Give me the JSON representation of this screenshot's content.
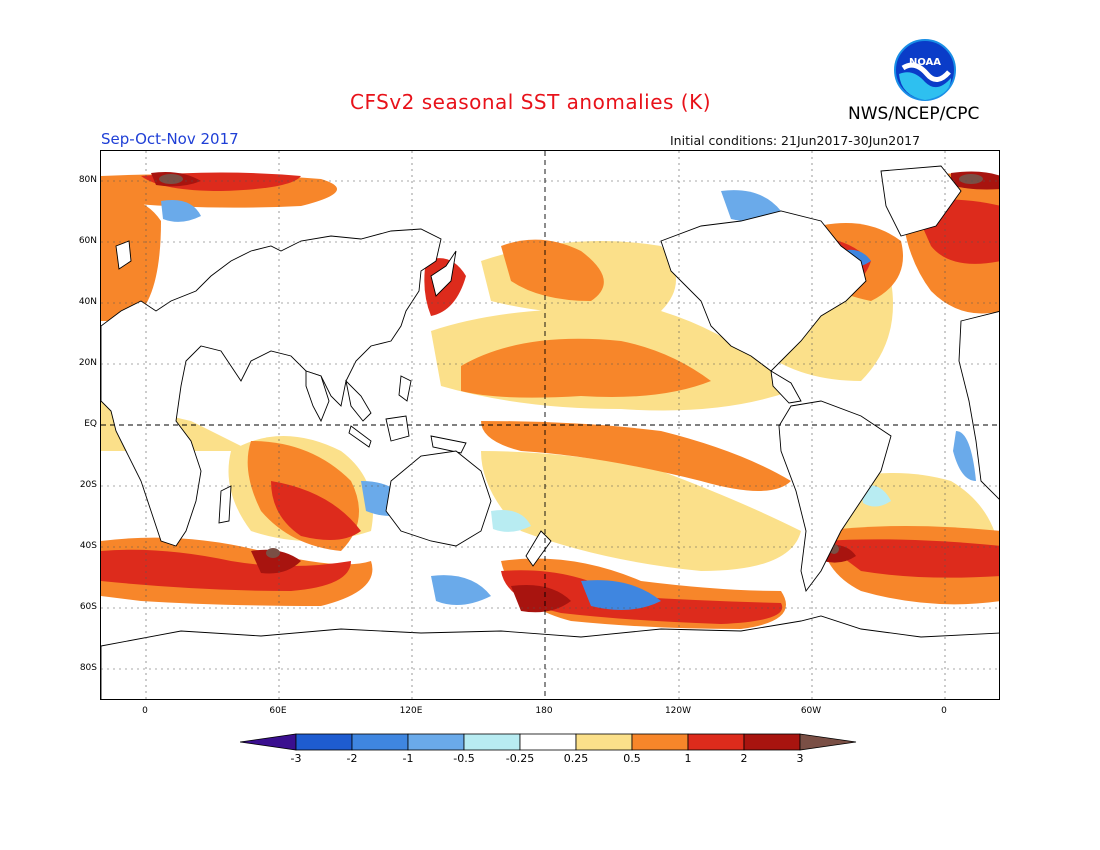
{
  "title": "CFSv2 seasonal SST anomalies (K)",
  "season": "Sep-Oct-Nov 2017",
  "org": "NWS/NCEP/CPC",
  "logo_text": "NOAA",
  "initial_conditions": "Initial conditions: 21Jun2017-30Jun2017",
  "lat_labels": [
    "80N",
    "60N",
    "40N",
    "20N",
    "EQ",
    "20S",
    "40S",
    "60S",
    "80S"
  ],
  "lon_labels": [
    "0",
    "60E",
    "120E",
    "180",
    "120W",
    "60W",
    "0"
  ],
  "colorbar": {
    "labels": [
      "-3",
      "-2",
      "-1",
      "-0.5",
      "-0.25",
      "0.25",
      "0.5",
      "1",
      "2",
      "3"
    ],
    "colors": [
      "#3a0f8f",
      "#1e5cd0",
      "#3f86e0",
      "#6aaaea",
      "#b8ecf2",
      "#ffffff",
      "#fbe08a",
      "#f7862a",
      "#dd2b1c",
      "#a8140f",
      "#7a4f45"
    ]
  },
  "colors": {
    "title": "#e8121a",
    "season": "#1f3fd6",
    "land_outline": "#000000"
  }
}
